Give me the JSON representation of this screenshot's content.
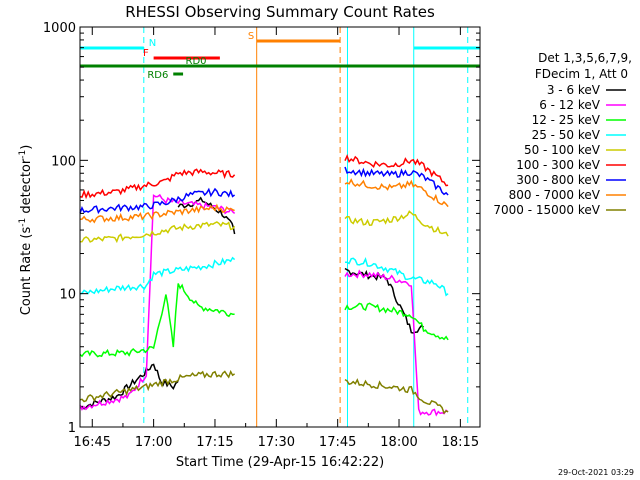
{
  "chart_data": {
    "type": "line",
    "title": "RHESSI Observing Summary Count Rates",
    "xlabel": "Start Time (29-Apr-15 16:42:22)",
    "ylabel_main": "Count Rate (s",
    "ylabel_sup1": "-1",
    "ylabel_mid": " detector",
    "ylabel_sup2": "-1",
    "ylabel_end": ")",
    "footer": "29-Oct-2021 03:29",
    "y_scale": "log",
    "ylim": [
      1,
      1000
    ],
    "xlim_minutes": [
      16.7,
      18.33
    ],
    "x_ticks": [
      {
        "t": 16.75,
        "label": "16:45"
      },
      {
        "t": 17.0,
        "label": "17:00"
      },
      {
        "t": 17.25,
        "label": "17:15"
      },
      {
        "t": 17.5,
        "label": "17:30"
      },
      {
        "t": 17.75,
        "label": "17:45"
      },
      {
        "t": 18.0,
        "label": "18:00"
      },
      {
        "t": 18.25,
        "label": "18:15"
      }
    ],
    "y_ticks": [
      {
        "v": 1,
        "label": "1"
      },
      {
        "v": 10,
        "label": "10"
      },
      {
        "v": 100,
        "label": "100"
      },
      {
        "v": 1000,
        "label": "1000"
      }
    ],
    "legend_header": [
      "Det 1,3,5,6,7,9,",
      "FDecim 1, Att 0"
    ],
    "legend_position": "right",
    "series": [
      {
        "name": "3 - 6 keV",
        "color": "#000000",
        "segments": [
          [
            [
              16.7,
              1.4
            ],
            [
              16.85,
              1.7
            ],
            [
              16.97,
              2.6
            ],
            [
              17.0,
              3.0
            ],
            [
              17.03,
              2.2
            ],
            [
              17.08,
              2.0
            ],
            [
              17.1,
              2.2
            ]
          ],
          [
            [
              17.1,
              45
            ],
            [
              17.2,
              50
            ],
            [
              17.28,
              40
            ],
            [
              17.32,
              32
            ],
            [
              17.33,
              28
            ]
          ],
          [
            [
              17.78,
              15
            ],
            [
              17.85,
              14
            ],
            [
              17.95,
              13
            ],
            [
              18.02,
              7
            ],
            [
              18.05,
              5.3
            ],
            [
              18.1,
              5.6
            ]
          ]
        ]
      },
      {
        "name": "6 - 12 keV",
        "color": "#ff00ff",
        "segments": [
          [
            [
              16.7,
              1.4
            ],
            [
              16.9,
              1.7
            ],
            [
              16.97,
              2.5
            ],
            [
              17.0,
              55
            ],
            [
              17.05,
              50
            ],
            [
              17.1,
              48
            ],
            [
              17.18,
              46
            ],
            [
              17.26,
              44
            ],
            [
              17.33,
              40
            ]
          ],
          [
            [
              17.78,
              14
            ],
            [
              17.88,
              14
            ],
            [
              17.97,
              13
            ],
            [
              18.05,
              12
            ],
            [
              18.08,
              1.3
            ],
            [
              18.2,
              1.3
            ]
          ]
        ]
      },
      {
        "name": "12 - 25 keV",
        "color": "#00ff00",
        "segments": [
          [
            [
              16.7,
              3.5
            ],
            [
              16.9,
              3.6
            ],
            [
              17.0,
              3.9
            ],
            [
              17.05,
              10
            ],
            [
              17.08,
              4
            ],
            [
              17.1,
              12
            ],
            [
              17.18,
              8
            ],
            [
              17.26,
              7.5
            ],
            [
              17.33,
              7
            ]
          ],
          [
            [
              17.78,
              8
            ],
            [
              17.88,
              8
            ],
            [
              17.97,
              7.5
            ],
            [
              18.05,
              7
            ],
            [
              18.1,
              5.5
            ],
            [
              18.2,
              4.5
            ]
          ]
        ]
      },
      {
        "name": "25 - 50 keV",
        "color": "#00ffff",
        "segments": [
          [
            [
              16.7,
              10
            ],
            [
              16.85,
              11
            ],
            [
              16.97,
              11.5
            ],
            [
              17.0,
              14
            ],
            [
              17.1,
              15
            ],
            [
              17.2,
              16
            ],
            [
              17.33,
              18
            ]
          ],
          [
            [
              17.78,
              18
            ],
            [
              17.88,
              17
            ],
            [
              17.97,
              15
            ],
            [
              18.05,
              13
            ],
            [
              18.15,
              12
            ],
            [
              18.2,
              10
            ]
          ]
        ]
      },
      {
        "name": "50 - 100 keV",
        "color": "#cccc00",
        "segments": [
          [
            [
              16.7,
              25
            ],
            [
              16.85,
              26
            ],
            [
              16.97,
              28
            ],
            [
              17.05,
              30
            ],
            [
              17.15,
              32
            ],
            [
              17.25,
              33
            ],
            [
              17.33,
              32
            ]
          ],
          [
            [
              17.78,
              36
            ],
            [
              17.88,
              34
            ],
            [
              17.97,
              36
            ],
            [
              18.05,
              40
            ],
            [
              18.1,
              34
            ],
            [
              18.2,
              27
            ]
          ]
        ]
      },
      {
        "name": "100 - 300 keV",
        "color": "#ff0000",
        "segments": [
          [
            [
              16.7,
              55
            ],
            [
              16.85,
              58
            ],
            [
              16.97,
              65
            ],
            [
              17.05,
              70
            ],
            [
              17.1,
              80
            ],
            [
              17.2,
              82
            ],
            [
              17.33,
              78
            ]
          ],
          [
            [
              17.78,
              105
            ],
            [
              17.88,
              95
            ],
            [
              17.97,
              92
            ],
            [
              18.05,
              100
            ],
            [
              18.1,
              90
            ],
            [
              18.2,
              65
            ]
          ]
        ]
      },
      {
        "name": "300 - 800 keV",
        "color": "#0000ff",
        "segments": [
          [
            [
              16.7,
              42
            ],
            [
              16.85,
              44
            ],
            [
              16.97,
              45
            ],
            [
              17.05,
              48
            ],
            [
              17.15,
              55
            ],
            [
              17.25,
              58
            ],
            [
              17.33,
              55
            ]
          ],
          [
            [
              17.78,
              85
            ],
            [
              17.88,
              80
            ],
            [
              17.97,
              78
            ],
            [
              18.05,
              82
            ],
            [
              18.1,
              75
            ],
            [
              18.2,
              55
            ]
          ]
        ]
      },
      {
        "name": "800 - 7000 keV",
        "color": "#ff8000",
        "segments": [
          [
            [
              16.7,
              36
            ],
            [
              16.85,
              37
            ],
            [
              16.97,
              38
            ],
            [
              17.05,
              40
            ],
            [
              17.15,
              42
            ],
            [
              17.25,
              44
            ],
            [
              17.33,
              42
            ]
          ],
          [
            [
              17.78,
              70
            ],
            [
              17.88,
              65
            ],
            [
              17.97,
              62
            ],
            [
              18.05,
              66
            ],
            [
              18.1,
              60
            ],
            [
              18.2,
              45
            ]
          ]
        ]
      },
      {
        "name": "7000 - 15000 keV",
        "color": "#808000",
        "segments": [
          [
            [
              16.7,
              1.6
            ],
            [
              16.85,
              1.8
            ],
            [
              16.97,
              2.0
            ],
            [
              17.05,
              2.2
            ],
            [
              17.15,
              2.4
            ],
            [
              17.25,
              2.5
            ],
            [
              17.33,
              2.5
            ]
          ],
          [
            [
              17.78,
              2.2
            ],
            [
              17.88,
              2.1
            ],
            [
              17.97,
              2.0
            ],
            [
              18.05,
              1.9
            ],
            [
              18.1,
              1.6
            ],
            [
              18.2,
              1.3
            ]
          ]
        ]
      }
    ],
    "flags": [
      {
        "label": "N",
        "color": "#00ffff",
        "segments": [
          [
            16.7,
            16.96
          ],
          [
            18.06,
            18.33
          ]
        ]
      },
      {
        "label": "S",
        "color": "#ff8000",
        "segments": [
          [
            17.42,
            17.76
          ]
        ]
      },
      {
        "label": "F",
        "color": "#ff0000",
        "segments": [
          [
            17.0,
            17.27
          ]
        ]
      },
      {
        "label": "RD0",
        "color": "#008000",
        "segments": [
          [
            16.7,
            18.33
          ]
        ]
      },
      {
        "label": "RD6",
        "color": "#008000",
        "segments": [
          [
            17.08,
            17.12
          ]
        ]
      }
    ],
    "vertical_markers": [
      {
        "t": 16.7,
        "color": "#00ffff",
        "style": "solid"
      },
      {
        "t": 16.96,
        "color": "#00ffff",
        "style": "dashed"
      },
      {
        "t": 17.42,
        "color": "#ff8000",
        "style": "solid"
      },
      {
        "t": 17.76,
        "color": "#ff8000",
        "style": "dashed"
      },
      {
        "t": 17.79,
        "color": "#00ffff",
        "style": "solid"
      },
      {
        "t": 18.06,
        "color": "#00ffff",
        "style": "solid"
      },
      {
        "t": 18.28,
        "color": "#00ffff",
        "style": "dashed"
      }
    ]
  }
}
